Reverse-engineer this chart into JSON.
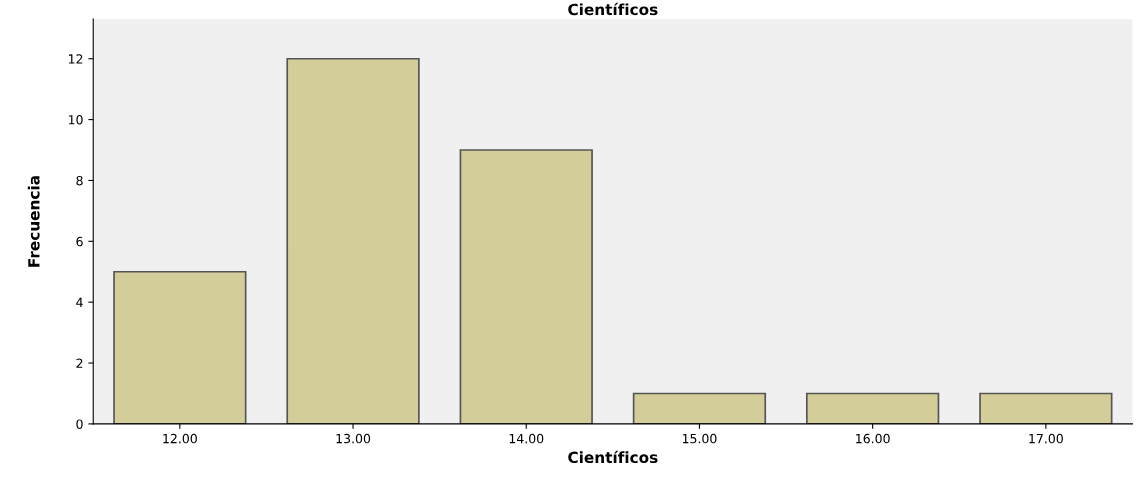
{
  "chart_data": {
    "type": "bar",
    "title": "Científicos",
    "xlabel": "Científicos",
    "ylabel": "Frecuencia",
    "categories": [
      "12.00",
      "13.00",
      "14.00",
      "15.00",
      "16.00",
      "17.00"
    ],
    "values": [
      5,
      12,
      9,
      1,
      1,
      1
    ],
    "color": "#d3ce99",
    "ylim": [
      0,
      13.3
    ],
    "yticks": [
      0,
      2,
      4,
      6,
      8,
      10,
      12
    ],
    "grid": false
  }
}
